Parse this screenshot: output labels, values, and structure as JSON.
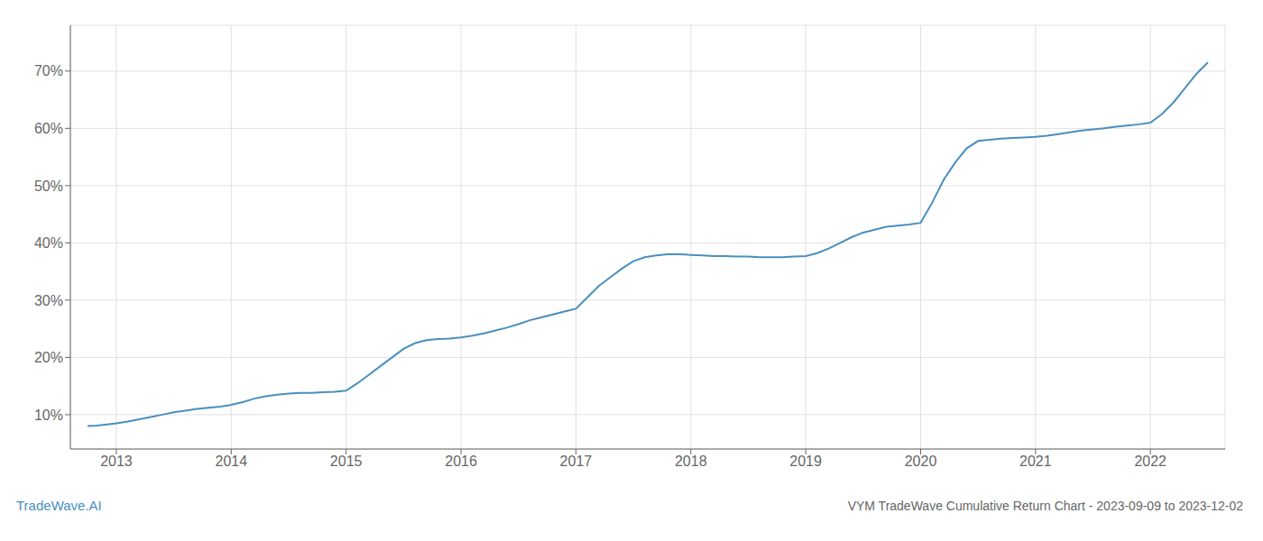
{
  "chart_data": {
    "type": "line",
    "title": "VYM TradeWave Cumulative Return Chart - 2023-09-09 to 2023-12-02",
    "annotations": [
      "TradeWave.AI"
    ],
    "color": "#4a8fbe",
    "grid": true,
    "x": [
      2012.75,
      2012.83,
      2012.92,
      2013.0,
      2013.1,
      2013.2,
      2013.3,
      2013.4,
      2013.5,
      2013.6,
      2013.7,
      2013.8,
      2013.9,
      2014.0,
      2014.1,
      2014.2,
      2014.3,
      2014.4,
      2014.5,
      2014.6,
      2014.7,
      2014.8,
      2014.9,
      2015.0,
      2015.1,
      2015.2,
      2015.3,
      2015.4,
      2015.5,
      2015.6,
      2015.7,
      2015.8,
      2015.9,
      2016.0,
      2016.1,
      2016.2,
      2016.3,
      2016.4,
      2016.5,
      2016.6,
      2016.7,
      2016.8,
      2016.9,
      2017.0,
      2017.1,
      2017.2,
      2017.3,
      2017.4,
      2017.5,
      2017.6,
      2017.7,
      2017.8,
      2017.9,
      2018.0,
      2018.1,
      2018.2,
      2018.3,
      2018.4,
      2018.5,
      2018.6,
      2018.7,
      2018.8,
      2018.9,
      2019.0,
      2019.1,
      2019.2,
      2019.3,
      2019.4,
      2019.5,
      2019.6,
      2019.7,
      2019.8,
      2019.9,
      2020.0,
      2020.1,
      2020.2,
      2020.3,
      2020.4,
      2020.5,
      2020.6,
      2020.7,
      2020.8,
      2020.9,
      2021.0,
      2021.1,
      2021.2,
      2021.3,
      2021.4,
      2021.5,
      2021.6,
      2021.7,
      2021.8,
      2021.9,
      2022.0,
      2022.1,
      2022.2,
      2022.3,
      2022.4,
      2022.5
    ],
    "values": [
      8.0,
      8.1,
      8.3,
      8.5,
      8.8,
      9.2,
      9.6,
      10.0,
      10.4,
      10.7,
      11.0,
      11.2,
      11.4,
      11.7,
      12.2,
      12.8,
      13.2,
      13.5,
      13.7,
      13.8,
      13.8,
      13.9,
      14.0,
      14.2,
      15.5,
      17.0,
      18.5,
      20.0,
      21.5,
      22.5,
      23.0,
      23.2,
      23.3,
      23.5,
      23.8,
      24.2,
      24.7,
      25.2,
      25.8,
      26.5,
      27.0,
      27.5,
      28.0,
      28.5,
      30.5,
      32.5,
      34.0,
      35.5,
      36.8,
      37.5,
      37.8,
      38.0,
      38.0,
      37.9,
      37.8,
      37.7,
      37.7,
      37.6,
      37.6,
      37.5,
      37.5,
      37.5,
      37.6,
      37.7,
      38.2,
      39.0,
      40.0,
      41.0,
      41.8,
      42.3,
      42.8,
      43.0,
      43.2,
      43.5,
      47.0,
      51.0,
      54.0,
      56.5,
      57.8,
      58.0,
      58.2,
      58.3,
      58.4,
      58.5,
      58.7,
      59.0,
      59.3,
      59.6,
      59.8,
      60.0,
      60.3,
      60.5,
      60.7,
      61.0,
      62.5,
      64.5,
      67.0,
      69.5,
      71.5
    ],
    "xlim": [
      2012.6,
      2022.65
    ],
    "xticks": [
      2013,
      2014,
      2015,
      2016,
      2017,
      2018,
      2019,
      2020,
      2021,
      2022
    ],
    "ylim": [
      4,
      78
    ],
    "yticks": [
      {
        "value": 10,
        "label": "10%"
      },
      {
        "value": 20,
        "label": "20%"
      },
      {
        "value": 30,
        "label": "30%"
      },
      {
        "value": 40,
        "label": "40%"
      },
      {
        "value": 50,
        "label": "50%"
      },
      {
        "value": 60,
        "label": "60%"
      },
      {
        "value": 70,
        "label": "70%"
      }
    ]
  }
}
